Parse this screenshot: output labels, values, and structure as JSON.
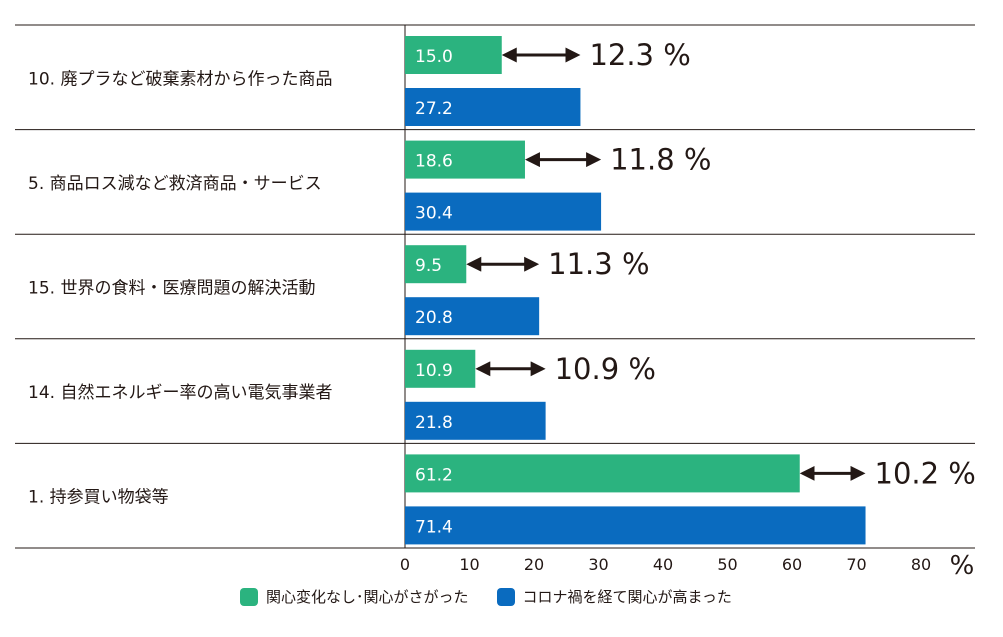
{
  "chart_data": {
    "type": "bar",
    "orientation": "horizontal",
    "categories": [
      "10. 廃プラなど破棄素材から作った商品",
      "5. 商品ロス減など救済商品・サービス",
      "15. 世界の食料・医療問題の解決活動",
      "14. 自然エネルギー率の高い電気事業者",
      "1. 持参買い物袋等"
    ],
    "series": [
      {
        "name": "関心変化なし･関心がさがった",
        "color": "#2bb37f",
        "values": [
          15.0,
          18.6,
          9.5,
          10.9,
          61.2
        ],
        "labels": [
          "15.0",
          "18.6",
          "9.5",
          "10.9",
          "61.2"
        ]
      },
      {
        "name": "コロナ禍を経て関心が高まった",
        "color": "#0a6bbf",
        "values": [
          27.2,
          30.4,
          20.8,
          21.8,
          71.4
        ],
        "labels": [
          "27.2",
          "30.4",
          "20.8",
          "21.8",
          "71.4"
        ]
      }
    ],
    "differences": [
      "12.3 %",
      "11.8 %",
      "11.3 %",
      "10.9 %",
      "10.2 %"
    ],
    "xlim": [
      0,
      80
    ],
    "xticks": [
      "0",
      "10",
      "20",
      "30",
      "40",
      "50",
      "60",
      "70",
      "80"
    ],
    "xunit": "%",
    "legend_position": "bottom",
    "grid": false
  }
}
